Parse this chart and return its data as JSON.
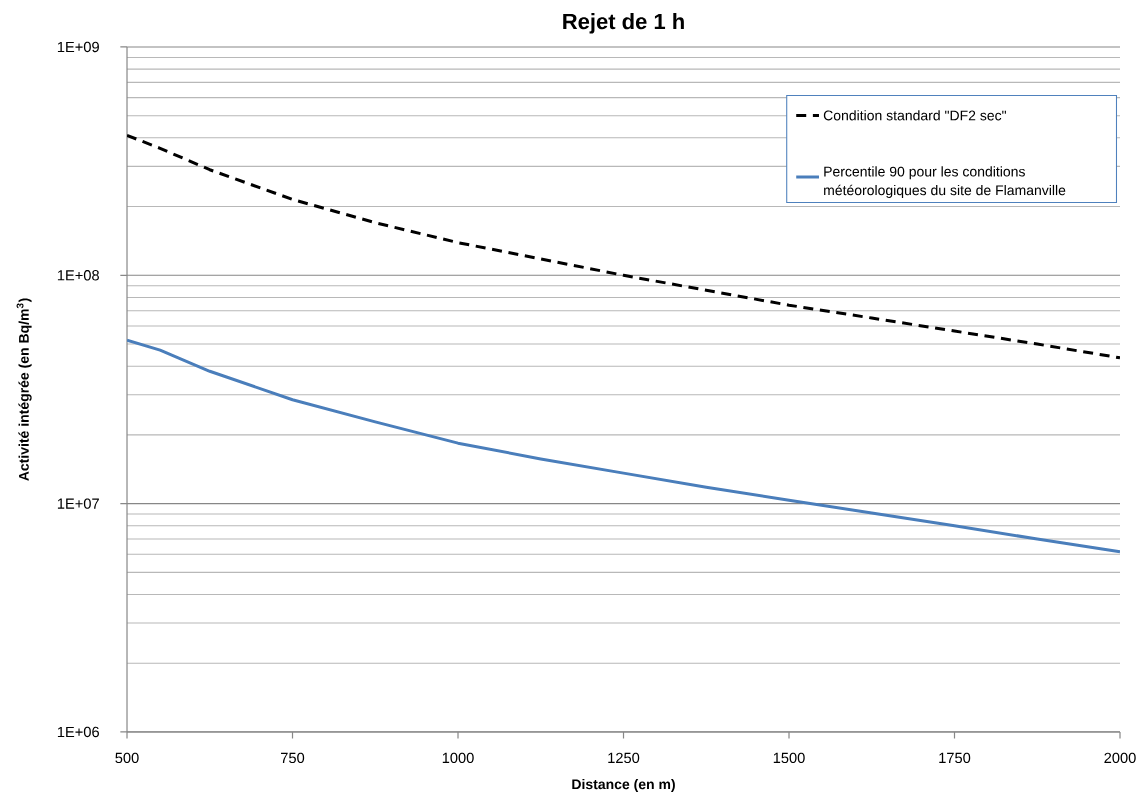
{
  "chart_data": {
    "type": "line",
    "title": "Rejet de 1 h",
    "xlabel": "Distance (en m)",
    "ylabel": "Activité intégrée (en Bq/m$^{3}$)",
    "log": "y",
    "grid": "y",
    "legend": "top right",
    "xlim": [
      500,
      2000
    ],
    "xticks": [
      500,
      750,
      1000,
      1250,
      1500,
      1750,
      2000
    ],
    "ylim": [
      1000000,
      1000000000
    ],
    "yticks": [
      {
        "value": 1000000,
        "label": "1E+06"
      },
      {
        "value": 10000000,
        "label": "1E+07"
      },
      {
        "value": 100000000,
        "label": "1E+08"
      },
      {
        "value": 1000000000,
        "label": "1E+09"
      }
    ],
    "x": [
      500,
      550,
      625,
      750,
      875,
      1000,
      1125,
      1250,
      1375,
      1500,
      1625,
      1750,
      1875,
      2000
    ],
    "series": [
      {
        "name": "Condition standard \"DF2 sec\"",
        "color": "#000000",
        "line_style": "dashed",
        "values": [
          410000000,
          360000000,
          290000000,
          215000000,
          170000000,
          139000000,
          118000000,
          100000000,
          86000000,
          74000000,
          65000000,
          57000000,
          50000000,
          43500000
        ]
      },
      {
        "name": "Percentile 90 pour les conditions météorologiques du site de Flamanville",
        "color": "#4a7ebb",
        "line_style": "solid",
        "values": [
          52000000,
          47000000,
          38000000,
          28500000,
          22800000,
          18400000,
          15700000,
          13600000,
          11800000,
          10350000,
          9100000,
          8000000,
          7000000,
          6150000
        ]
      }
    ]
  }
}
